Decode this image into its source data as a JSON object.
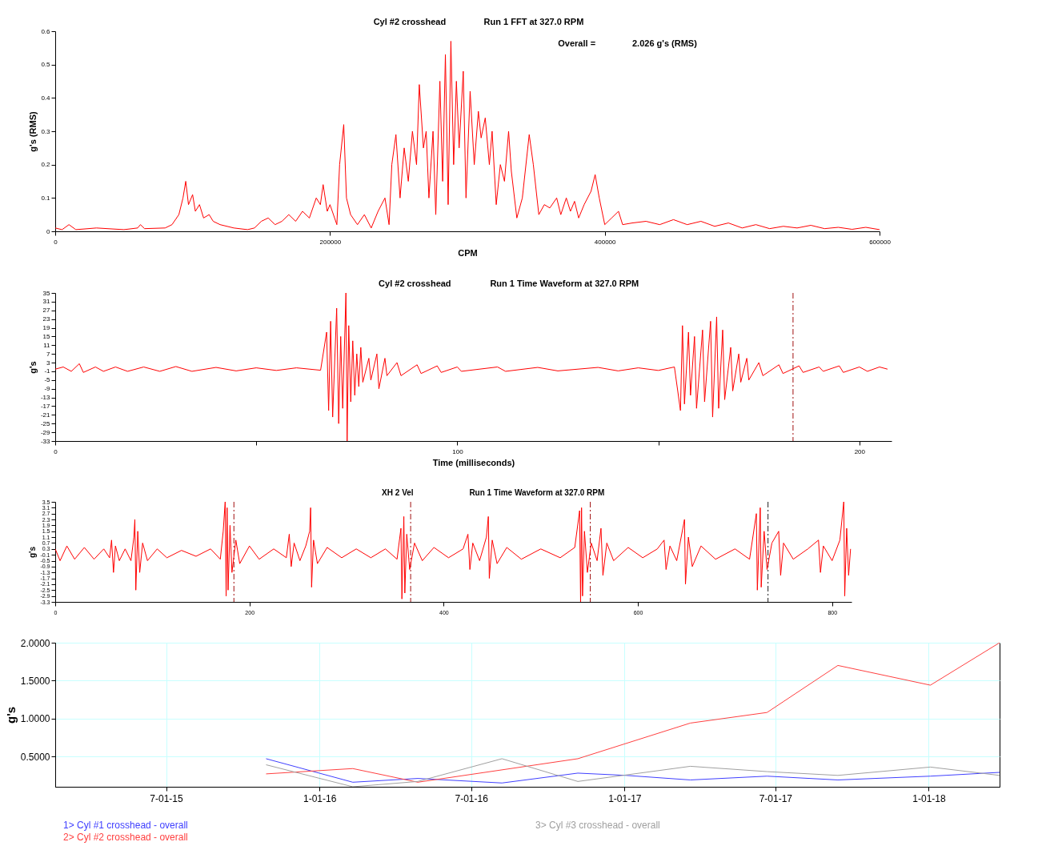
{
  "chart_data": [
    {
      "type": "line",
      "title": "Cyl #2 crosshead",
      "subtitle": "Run 1 FFT at 327.0 RPM",
      "annotations": [
        "Overall =",
        "2.026 g's (RMS)"
      ],
      "xlabel": "CPM",
      "ylabel": "g's (RMS)",
      "xlim": [
        0,
        600000
      ],
      "ylim": [
        0,
        0.6
      ],
      "xticks": [
        0,
        200000,
        400000,
        600000
      ],
      "yticks": [
        0,
        0.1,
        0.2,
        0.3,
        0.4,
        0.5,
        0.6
      ],
      "x": [
        0,
        5000,
        10000,
        15000,
        30000,
        50000,
        60000,
        62000,
        65000,
        80000,
        85000,
        90000,
        93000,
        95000,
        97000,
        100000,
        102000,
        105000,
        108000,
        112000,
        115000,
        120000,
        130000,
        140000,
        145000,
        150000,
        155000,
        160000,
        165000,
        170000,
        175000,
        180000,
        185000,
        190000,
        193000,
        195000,
        198000,
        200000,
        205000,
        207000,
        210000,
        212000,
        215000,
        220000,
        225000,
        230000,
        235000,
        240000,
        243000,
        245000,
        248000,
        251000,
        254000,
        257000,
        260000,
        263000,
        265000,
        268000,
        270000,
        272000,
        275000,
        277000,
        280000,
        282000,
        284000,
        286000,
        288000,
        290000,
        292000,
        294000,
        297000,
        299000,
        302000,
        305000,
        308000,
        310000,
        313000,
        316000,
        318000,
        321000,
        324000,
        327000,
        330000,
        332000,
        336000,
        340000,
        345000,
        348000,
        352000,
        356000,
        360000,
        365000,
        368000,
        372000,
        375000,
        378000,
        381000,
        385000,
        390000,
        393000,
        396000,
        400000,
        405000,
        410000,
        413000,
        420000,
        430000,
        440000,
        450000,
        460000,
        470000,
        480000,
        490000,
        500000,
        510000,
        520000,
        530000,
        540000,
        550000,
        560000,
        570000,
        580000,
        590000,
        600000
      ],
      "series": [
        {
          "color": "#ff0000",
          "values": [
            0.01,
            0.005,
            0.02,
            0.005,
            0.01,
            0.005,
            0.01,
            0.02,
            0.008,
            0.01,
            0.02,
            0.05,
            0.1,
            0.15,
            0.08,
            0.11,
            0.06,
            0.08,
            0.04,
            0.05,
            0.03,
            0.02,
            0.01,
            0.005,
            0.01,
            0.03,
            0.04,
            0.02,
            0.03,
            0.05,
            0.03,
            0.06,
            0.04,
            0.1,
            0.08,
            0.14,
            0.06,
            0.08,
            0.02,
            0.2,
            0.32,
            0.1,
            0.05,
            0.02,
            0.05,
            0.01,
            0.06,
            0.1,
            0.02,
            0.2,
            0.29,
            0.1,
            0.25,
            0.15,
            0.3,
            0.2,
            0.44,
            0.25,
            0.3,
            0.1,
            0.3,
            0.05,
            0.45,
            0.15,
            0.53,
            0.08,
            0.57,
            0.2,
            0.45,
            0.25,
            0.48,
            0.1,
            0.42,
            0.2,
            0.36,
            0.28,
            0.34,
            0.2,
            0.3,
            0.08,
            0.2,
            0.15,
            0.3,
            0.18,
            0.04,
            0.1,
            0.29,
            0.2,
            0.05,
            0.08,
            0.07,
            0.1,
            0.05,
            0.1,
            0.06,
            0.09,
            0.04,
            0.08,
            0.12,
            0.17,
            0.1,
            0.02,
            0.04,
            0.06,
            0.02,
            0.025,
            0.03,
            0.02,
            0.035,
            0.02,
            0.03,
            0.015,
            0.025,
            0.01,
            0.02,
            0.008,
            0.015,
            0.01,
            0.018,
            0.008,
            0.012,
            0.006,
            0.012,
            0.005
          ]
        }
      ]
    },
    {
      "type": "line",
      "title": "Cyl #2 crosshead",
      "subtitle": "Run 1 Time Waveform at 327.0 RPM",
      "xlabel": "Time (milliseconds)",
      "ylabel": "g's",
      "xlim": [
        0,
        208
      ],
      "ylim": [
        -33,
        35
      ],
      "xticks": [
        0,
        {
          "value": 50,
          "label": null
        },
        100,
        {
          "value": 150,
          "label": null
        },
        200
      ],
      "yticks": [
        -33,
        -29,
        -25,
        -21,
        -17,
        -13,
        -9,
        -5,
        -1,
        3,
        7,
        11,
        15,
        19,
        23,
        27,
        31,
        35
      ],
      "ref_lines": [
        {
          "axis": "x",
          "value": 183.5,
          "color": "#a01010",
          "line_style": "dashed"
        }
      ],
      "x": [
        0,
        2,
        4,
        6,
        7,
        10,
        12,
        15,
        18,
        22,
        26,
        30,
        34,
        40,
        45,
        50,
        55,
        60,
        66,
        67.5,
        68,
        68.5,
        69,
        70,
        70.5,
        71,
        71.5,
        72.3,
        72.6,
        73,
        73.5,
        74,
        74.5,
        75,
        75.5,
        76,
        76.5,
        78,
        78.5,
        80,
        80.5,
        82,
        82.5,
        85,
        86,
        90,
        91,
        95,
        96,
        100,
        101,
        110,
        112,
        120,
        125,
        135,
        140,
        145,
        150,
        154,
        155.5,
        156,
        156.5,
        157.5,
        158,
        159,
        159.5,
        161,
        161.5,
        163,
        163.5,
        164.5,
        165,
        166,
        166.5,
        168,
        168.5,
        170,
        170.5,
        172,
        172.5,
        175,
        176,
        180,
        181,
        185,
        186,
        190,
        191,
        195,
        196,
        200,
        202,
        205,
        207
      ],
      "series": [
        {
          "color": "#ff0000",
          "values": [
            0,
            1,
            -1,
            2.5,
            -1.5,
            1,
            -1,
            1,
            -1,
            1,
            -1,
            1.2,
            -1,
            0.8,
            -0.8,
            0.6,
            -0.6,
            0.6,
            -0.5,
            17,
            -19,
            22,
            -22,
            28,
            -25,
            15,
            -18,
            35,
            -33,
            20,
            -15,
            13,
            -12,
            7,
            -8,
            10,
            -6,
            5,
            -5,
            7,
            -9,
            5,
            -3,
            3,
            -3,
            2,
            -2,
            1.5,
            -1.5,
            1,
            -1,
            1,
            -1,
            0.8,
            -0.8,
            0.8,
            -0.8,
            0.6,
            -0.6,
            1,
            -19,
            20,
            -16,
            17,
            -12,
            15,
            -18,
            18,
            -15,
            22,
            -22,
            24,
            -18,
            18,
            -14,
            10,
            -10,
            7,
            -6,
            5,
            -5,
            3,
            -3,
            2,
            -2,
            1.5,
            -1.5,
            1,
            -1,
            1.5,
            -1.5,
            1,
            -1,
            1,
            0
          ]
        }
      ]
    },
    {
      "type": "line",
      "title": "XH 2 Vel",
      "subtitle": "Run 1 Time Waveform at 327.0 RPM",
      "ylabel": "g's",
      "xlim": [
        0,
        820
      ],
      "ylim": [
        -3.3,
        3.5
      ],
      "xticks": [
        0,
        200,
        400,
        600,
        800
      ],
      "yticks": [
        -3.3,
        -2.9,
        -2.5,
        -2.1,
        -1.7,
        -1.3,
        -0.9,
        -0.5,
        -0.1,
        0.3,
        0.7,
        1.1,
        1.5,
        1.9,
        2.3,
        2.7,
        3.1,
        3.5
      ],
      "ref_lines": [
        {
          "axis": "x",
          "value": 184,
          "color": "#a01010",
          "line_style": "dashed"
        },
        {
          "axis": "x",
          "value": 366,
          "color": "#a01010",
          "line_style": "dashed"
        },
        {
          "axis": "x",
          "value": 551,
          "color": "#a01010",
          "line_style": "dashed"
        },
        {
          "axis": "x",
          "value": 734,
          "color": "#202020",
          "line_style": "dashed"
        }
      ],
      "x": [
        0,
        5,
        12,
        20,
        30,
        40,
        50,
        56,
        58,
        60,
        62,
        66,
        72,
        78,
        81,
        82,
        83,
        85,
        87,
        90,
        95,
        105,
        115,
        130,
        145,
        160,
        170,
        173,
        175,
        176,
        177,
        178,
        180,
        182,
        186,
        190,
        200,
        210,
        225,
        238,
        241,
        243,
        246,
        252,
        258,
        262,
        263,
        264,
        266,
        270,
        280,
        295,
        310,
        325,
        340,
        352,
        356,
        357,
        359,
        360,
        362,
        365,
        370,
        378,
        390,
        405,
        420,
        425,
        427,
        430,
        437,
        444,
        446,
        447,
        450,
        455,
        465,
        480,
        500,
        520,
        535,
        540,
        541,
        542,
        543,
        545,
        548,
        552,
        558,
        562,
        564,
        568,
        575,
        590,
        605,
        620,
        627,
        629,
        633,
        640,
        648,
        649,
        652,
        656,
        665,
        680,
        700,
        715,
        722,
        723,
        726,
        727,
        730,
        733,
        738,
        745,
        747,
        750,
        760,
        775,
        786,
        788,
        791,
        800,
        808,
        812,
        813,
        815,
        817,
        819
      ],
      "series": [
        {
          "color": "#ff0000",
          "values": [
            0.3,
            -0.5,
            0.5,
            -0.4,
            0.4,
            -0.4,
            0.3,
            -0.3,
            0.9,
            -1.3,
            0.5,
            -0.5,
            0.3,
            -0.5,
            1.1,
            2.3,
            -2.5,
            1.5,
            -1.3,
            0.7,
            -0.5,
            0.3,
            -0.3,
            0.2,
            -0.2,
            0.3,
            -0.4,
            1.5,
            3.5,
            -2.9,
            3.1,
            -2.5,
            1.9,
            -1.3,
            0.9,
            -0.7,
            0.5,
            -0.4,
            0.3,
            -0.3,
            1.3,
            -0.9,
            0.7,
            -0.5,
            0.5,
            1.5,
            3.1,
            -2.3,
            0.9,
            -0.7,
            0.4,
            -0.3,
            0.3,
            -0.3,
            0.3,
            -0.4,
            1.7,
            -3.1,
            2.5,
            -2.7,
            1.3,
            -1.1,
            0.7,
            -0.5,
            0.4,
            -0.3,
            0.3,
            1.3,
            -1.1,
            0.7,
            -0.5,
            1.1,
            2.5,
            -1.7,
            0.9,
            -0.7,
            0.4,
            -0.4,
            0.3,
            -0.3,
            0.4,
            2.9,
            -3.3,
            3.1,
            -2.9,
            1.5,
            -1.3,
            0.7,
            -0.5,
            1.7,
            -1.5,
            0.7,
            -0.5,
            0.4,
            -0.3,
            0.3,
            0.9,
            -1.1,
            0.5,
            -0.5,
            2.3,
            -2.1,
            1.1,
            -0.9,
            0.5,
            -0.4,
            0.3,
            -0.4,
            2.7,
            -2.5,
            3.1,
            -2.3,
            1.5,
            -1.1,
            0.7,
            1.5,
            -1.5,
            0.7,
            -0.4,
            0.3,
            0.9,
            -1.3,
            0.5,
            -0.5,
            0.9,
            3.5,
            -2.9,
            1.7,
            -1.5,
            0.3
          ]
        }
      ]
    },
    {
      "type": "line",
      "ylabel": "g's",
      "xlim": [
        "2015-02-18",
        "2018-03-27"
      ],
      "ylim": [
        0.1,
        2.0
      ],
      "grid": true,
      "legend": "bottom",
      "xticks": [
        {
          "value": "2015-07-01",
          "label": "7-01-15"
        },
        {
          "value": "2016-01-01",
          "label": "1-01-16"
        },
        {
          "value": "2016-07-01",
          "label": "7-01-16"
        },
        {
          "value": "2017-01-01",
          "label": "1-01-17"
        },
        {
          "value": "2017-07-01",
          "label": "7-01-17"
        },
        {
          "value": "2018-01-01",
          "label": "1-01-18"
        }
      ],
      "yticks": [
        {
          "value": 0.5,
          "label": "0.5000"
        },
        {
          "value": 1.0,
          "label": "1.0000"
        },
        {
          "value": 1.5,
          "label": "1.5000"
        },
        {
          "value": 2.0,
          "label": "2.0000"
        }
      ],
      "series": [
        {
          "name": "1> Cyl #1 crosshead - overall",
          "color": "#4040ff",
          "x": [
            "2015-10-29",
            "2016-02-10",
            "2016-04-28",
            "2016-08-07",
            "2016-11-06",
            "2017-01-03",
            "2017-03-21",
            "2017-06-21",
            "2017-09-14",
            "2018-01-03",
            "2018-03-27"
          ],
          "values": [
            0.47,
            0.16,
            0.21,
            0.15,
            0.28,
            0.25,
            0.19,
            0.24,
            0.19,
            0.24,
            0.29
          ]
        },
        {
          "name": "2> Cyl #2 crosshead - overall",
          "color": "#ff4040",
          "x": [
            "2015-10-29",
            "2016-02-10",
            "2016-04-28",
            "2016-11-06",
            "2017-03-21",
            "2017-06-21",
            "2017-09-14",
            "2018-01-03",
            "2018-03-27"
          ],
          "values": [
            0.27,
            0.34,
            0.16,
            0.47,
            0.94,
            1.08,
            1.7,
            1.44,
            2.0
          ]
        },
        {
          "name": "3> Cyl #3 crosshead - overall",
          "color": "#a0a0a0",
          "x": [
            "2015-10-29",
            "2016-02-10",
            "2016-04-28",
            "2016-08-07",
            "2016-11-06",
            "2017-03-21",
            "2017-06-21",
            "2017-09-14",
            "2018-01-03",
            "2018-03-27"
          ],
          "values": [
            0.39,
            0.1,
            0.17,
            0.47,
            0.17,
            0.37,
            0.3,
            0.25,
            0.36,
            0.25
          ]
        }
      ]
    }
  ]
}
